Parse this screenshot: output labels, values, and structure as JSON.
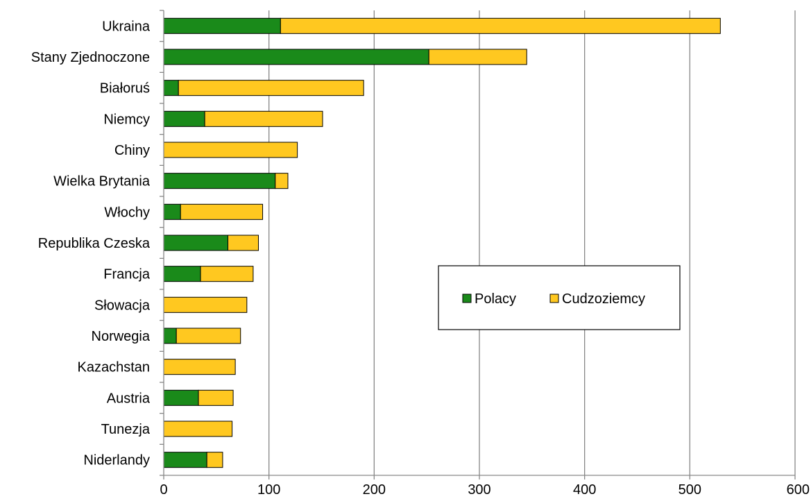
{
  "chart_data": {
    "type": "bar",
    "orientation": "horizontal",
    "stacked": true,
    "categories": [
      "Ukraina",
      "Stany Zjednoczone",
      "Białoruś",
      "Niemcy",
      "Chiny",
      "Wielka Brytania",
      "Włochy",
      "Republika Czeska",
      "Francja",
      "Słowacja",
      "Norwegia",
      "Kazachstan",
      "Austria",
      "Tunezja",
      "Niderlandy"
    ],
    "series": [
      {
        "name": "Polacy",
        "color": "#1a8a1a",
        "values": [
          111,
          252,
          14,
          39,
          0,
          106,
          16,
          61,
          35,
          0,
          12,
          0,
          33,
          0,
          41
        ]
      },
      {
        "name": "Cudzoziemcy",
        "color": "#ffc820",
        "values": [
          418,
          93,
          176,
          112,
          127,
          12,
          78,
          29,
          50,
          79,
          61,
          68,
          33,
          65,
          15
        ]
      }
    ],
    "xlim": [
      0,
      600
    ],
    "xticks": [
      "0",
      "100",
      "200",
      "300",
      "400",
      "500",
      "600"
    ],
    "grid": "vertical",
    "legend": "right-middle, boxed",
    "title": "",
    "xlabel": "",
    "ylabel": ""
  }
}
